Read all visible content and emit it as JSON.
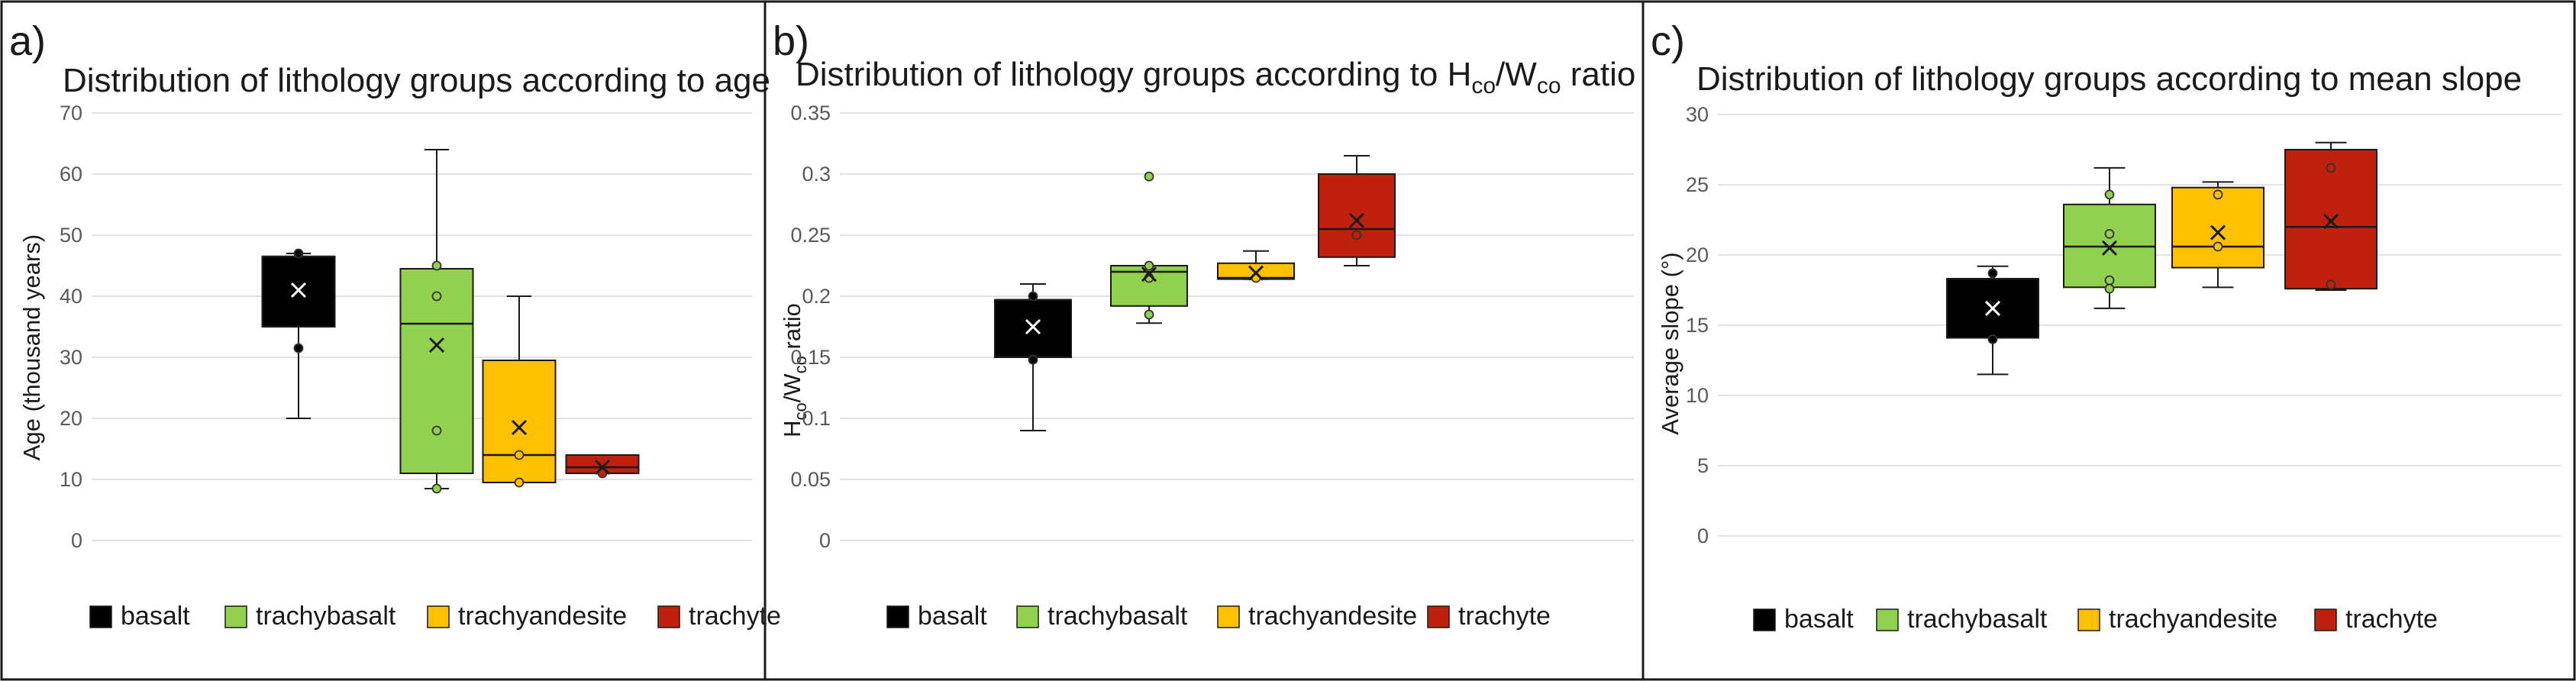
{
  "figure": {
    "legend": [
      {
        "label": "basalt",
        "color": "#000000"
      },
      {
        "label": "trachybasalt",
        "color": "#92d050"
      },
      {
        "label": "trachyandesite",
        "color": "#ffc000"
      },
      {
        "label": "trachyte",
        "color": "#c0200e"
      }
    ]
  },
  "chart_data": [
    {
      "type": "box",
      "letter": "a)",
      "title": "Distribution of lithology groups according to age",
      "ylabel": "Age (thousand years)",
      "ylim": [
        0,
        70
      ],
      "yticks": [
        0,
        10,
        20,
        30,
        40,
        50,
        60,
        70
      ],
      "categories": [
        "basalt",
        "trachybasalt",
        "trachyandesite",
        "trachyte"
      ],
      "boxes": [
        {
          "name": "basalt",
          "min": 20,
          "q1": 35,
          "median": 46.5,
          "q3": 46.5,
          "max": 47,
          "mean": 41,
          "points": [
            47,
            31.5
          ]
        },
        {
          "name": "trachybasalt",
          "min": 8.5,
          "q1": 11,
          "median": 35.5,
          "q3": 44.5,
          "max": 64,
          "mean": 32,
          "points": [
            45,
            40,
            18,
            8.5
          ]
        },
        {
          "name": "trachyandesite",
          "min": 9.5,
          "q1": 9.5,
          "median": 14,
          "q3": 29.5,
          "max": 40,
          "mean": 18.5,
          "points": [
            14,
            9.5
          ]
        },
        {
          "name": "trachyte",
          "min": 11,
          "q1": 11,
          "median": 12,
          "q3": 14,
          "max": 14,
          "mean": 12,
          "points": [
            11
          ]
        }
      ]
    },
    {
      "type": "box",
      "letter": "b)",
      "title_parts": [
        "Distribution of lithology groups according to H",
        "co",
        "/W",
        "co",
        " ratio"
      ],
      "ylabel_parts": [
        "H",
        "co",
        "/W",
        "co",
        " ratio"
      ],
      "ylim": [
        0,
        0.35
      ],
      "yticks": [
        0,
        0.05,
        0.1,
        0.15,
        0.2,
        0.25,
        0.3,
        0.35
      ],
      "categories": [
        "basalt",
        "trachybasalt",
        "trachyandesite",
        "trachyte"
      ],
      "boxes": [
        {
          "name": "basalt",
          "min": 0.09,
          "q1": 0.15,
          "median": 0.197,
          "q3": 0.197,
          "max": 0.21,
          "mean": 0.175,
          "points": [
            0.2,
            0.148
          ]
        },
        {
          "name": "trachybasalt",
          "min": 0.178,
          "q1": 0.192,
          "median": 0.22,
          "q3": 0.225,
          "max": 0.225,
          "mean": 0.218,
          "points": [
            0.298,
            0.225,
            0.215,
            0.185
          ]
        },
        {
          "name": "trachyandesite",
          "min": 0.214,
          "q1": 0.214,
          "median": 0.215,
          "q3": 0.227,
          "max": 0.237,
          "mean": 0.219,
          "points": [
            0.215
          ]
        },
        {
          "name": "trachyte",
          "min": 0.225,
          "q1": 0.232,
          "median": 0.255,
          "q3": 0.3,
          "max": 0.315,
          "mean": 0.262,
          "points": [
            0.25
          ]
        }
      ]
    },
    {
      "type": "box",
      "letter": "c)",
      "title": "Distribution of lithology groups according to mean slope",
      "ylabel": "Average slope (°)",
      "ylim": [
        0,
        30
      ],
      "yticks": [
        0,
        5,
        10,
        15,
        20,
        25,
        30
      ],
      "categories": [
        "basalt",
        "trachybasalt",
        "trachyandesite",
        "trachyte"
      ],
      "boxes": [
        {
          "name": "basalt",
          "min": 11.5,
          "q1": 14.1,
          "median": 18.3,
          "q3": 18.3,
          "max": 19.2,
          "mean": 16.2,
          "points": [
            18.7,
            14
          ]
        },
        {
          "name": "trachybasalt",
          "min": 16.2,
          "q1": 17.7,
          "median": 20.6,
          "q3": 23.6,
          "max": 26.2,
          "mean": 20.5,
          "points": [
            24.3,
            21.5,
            18.2,
            17.6
          ]
        },
        {
          "name": "trachyandesite",
          "min": 17.7,
          "q1": 19.1,
          "median": 20.6,
          "q3": 24.8,
          "max": 25.2,
          "mean": 21.6,
          "points": [
            24.3,
            20.6
          ]
        },
        {
          "name": "trachyte",
          "min": 17.5,
          "q1": 17.6,
          "median": 22,
          "q3": 27.5,
          "max": 28,
          "mean": 22.4,
          "points": [
            26.2,
            17.9
          ]
        }
      ]
    }
  ]
}
